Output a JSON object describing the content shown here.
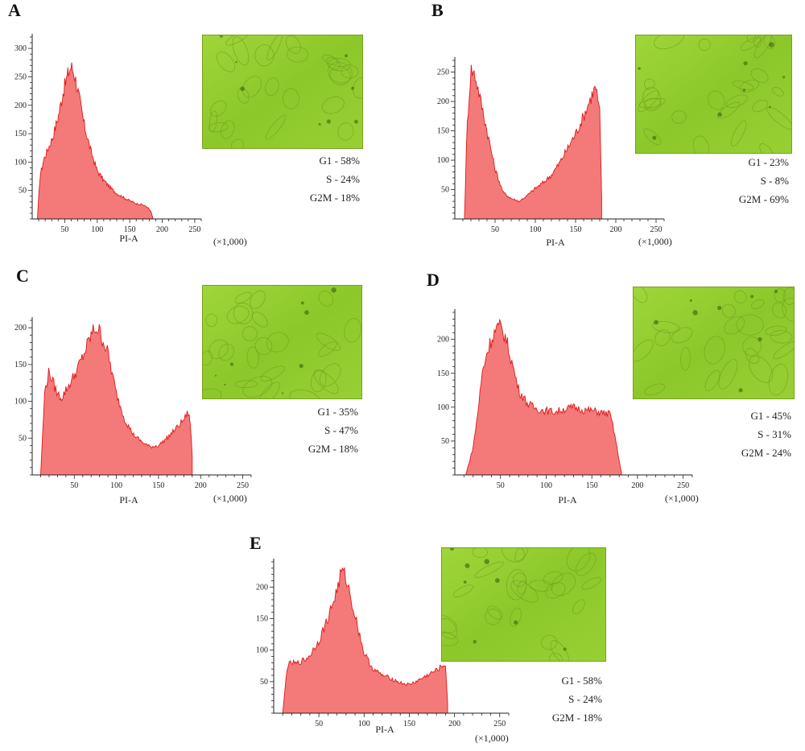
{
  "figure": {
    "scale_note": "(×1,000)"
  },
  "chart_data": [
    {
      "type": "area",
      "panel": "A",
      "xlabel": "PI-A",
      "ylabel": "",
      "xlim": [
        0,
        260
      ],
      "ylim": [
        0,
        320
      ],
      "x_ticks": [
        50,
        100,
        150,
        200,
        250
      ],
      "y_ticks": [
        50,
        100,
        150,
        200,
        250,
        300
      ],
      "x": [
        8,
        12,
        18,
        25,
        32,
        40,
        48,
        55,
        60,
        65,
        72,
        80,
        90,
        100,
        110,
        120,
        130,
        140,
        150,
        160,
        170,
        178,
        183,
        186
      ],
      "values": [
        0,
        75,
        105,
        125,
        145,
        180,
        225,
        255,
        268,
        255,
        215,
        165,
        120,
        85,
        68,
        55,
        45,
        38,
        32,
        27,
        25,
        20,
        12,
        0
      ],
      "phases": [
        "G1 - 58%",
        "S - 24%",
        "G2M - 18%"
      ]
    },
    {
      "type": "area",
      "panel": "B",
      "xlabel": "PI-A",
      "ylabel": "",
      "xlim": [
        0,
        260
      ],
      "ylim": [
        0,
        270
      ],
      "x_ticks": [
        50,
        100,
        150,
        200,
        250
      ],
      "y_ticks": [
        50,
        100,
        150,
        200,
        250
      ],
      "x": [
        12,
        15,
        20,
        25,
        30,
        40,
        50,
        60,
        70,
        80,
        90,
        100,
        110,
        120,
        130,
        140,
        150,
        160,
        170,
        175,
        180,
        183
      ],
      "values": [
        0,
        150,
        255,
        245,
        215,
        150,
        85,
        45,
        35,
        30,
        40,
        52,
        62,
        75,
        95,
        120,
        145,
        175,
        210,
        225,
        180,
        0
      ],
      "phases": [
        "G1 - 23%",
        "S - 8%",
        "G2M - 69%"
      ]
    },
    {
      "type": "area",
      "panel": "C",
      "xlabel": "PI-A",
      "ylabel": "",
      "xlim": [
        0,
        260
      ],
      "ylim": [
        0,
        210
      ],
      "x_ticks": [
        50,
        100,
        150,
        200,
        250
      ],
      "y_ticks": [
        50,
        100,
        150,
        200
      ],
      "x": [
        10,
        15,
        20,
        25,
        30,
        35,
        40,
        50,
        60,
        70,
        75,
        80,
        90,
        100,
        110,
        120,
        130,
        140,
        150,
        160,
        170,
        180,
        185,
        188,
        191
      ],
      "values": [
        0,
        115,
        140,
        125,
        110,
        105,
        115,
        135,
        160,
        190,
        200,
        195,
        165,
        110,
        75,
        55,
        45,
        38,
        40,
        50,
        62,
        75,
        85,
        70,
        0
      ],
      "phases": [
        "G1 - 35%",
        "S - 47%",
        "G2M - 18%"
      ]
    },
    {
      "type": "area",
      "panel": "D",
      "xlabel": "PI-A",
      "ylabel": "",
      "xlim": [
        0,
        260
      ],
      "ylim": [
        0,
        240
      ],
      "x_ticks": [
        50,
        100,
        150,
        200,
        250
      ],
      "y_ticks": [
        50,
        100,
        150,
        200
      ],
      "x": [
        12,
        20,
        25,
        30,
        35,
        40,
        45,
        50,
        55,
        60,
        70,
        80,
        90,
        100,
        110,
        120,
        130,
        140,
        150,
        160,
        170,
        175,
        180,
        183
      ],
      "values": [
        0,
        40,
        90,
        150,
        180,
        200,
        215,
        218,
        205,
        180,
        125,
        105,
        97,
        95,
        93,
        97,
        100,
        96,
        95,
        92,
        90,
        60,
        20,
        0
      ],
      "phases": [
        "G1 - 45%",
        "S - 31%",
        "G2M - 24%"
      ]
    },
    {
      "type": "area",
      "panel": "E",
      "xlabel": "PI-A",
      "ylabel": "",
      "xlim": [
        0,
        260
      ],
      "ylim": [
        0,
        240
      ],
      "x_ticks": [
        50,
        100,
        150,
        200,
        250
      ],
      "y_ticks": [
        50,
        100,
        150,
        200
      ],
      "x": [
        10,
        15,
        20,
        25,
        30,
        35,
        40,
        50,
        60,
        70,
        75,
        80,
        90,
        100,
        110,
        120,
        130,
        140,
        150,
        160,
        170,
        180,
        190,
        193
      ],
      "values": [
        0,
        75,
        80,
        78,
        82,
        85,
        92,
        115,
        150,
        195,
        225,
        215,
        155,
        95,
        70,
        60,
        55,
        48,
        45,
        52,
        60,
        68,
        78,
        0
      ],
      "phases": [
        "G1 - 58%",
        "S - 24%",
        "G2M - 18%"
      ]
    }
  ]
}
